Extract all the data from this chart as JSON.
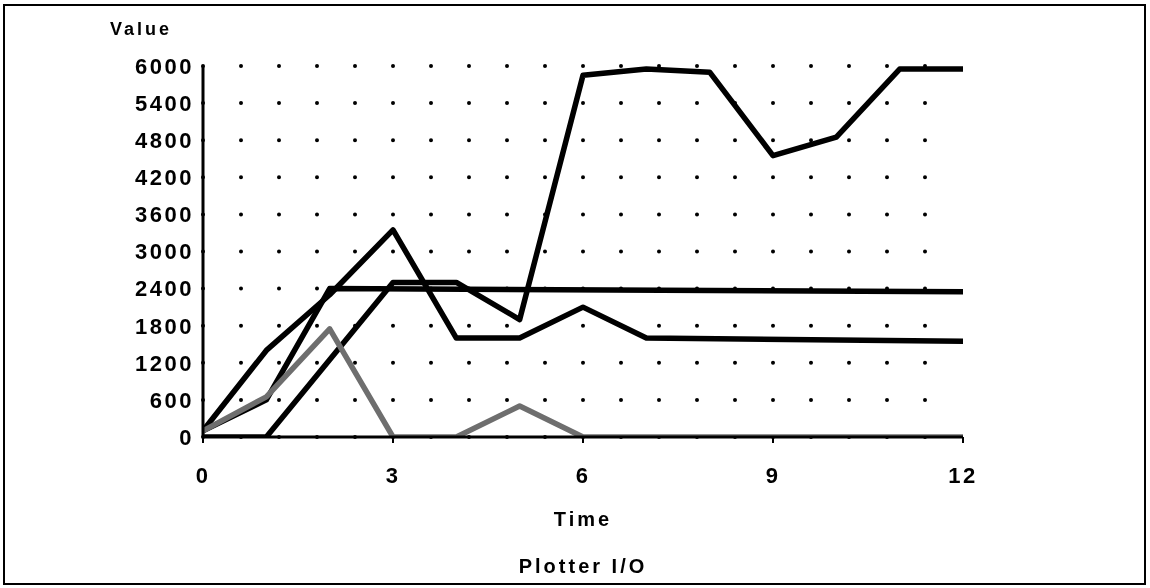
{
  "chart_data": {
    "type": "line",
    "title": "Plotter I/O",
    "xlabel": "Time",
    "ylabel": "Value",
    "x": [
      0,
      1,
      2,
      3,
      4,
      5,
      6,
      7,
      8,
      9,
      10,
      11,
      12
    ],
    "series": [
      {
        "color": "#000000",
        "values": [
          0,
          0,
          1250,
          2500,
          2500,
          1900,
          5850,
          5950,
          5900,
          4550,
          4850,
          5950,
          5950
        ]
      },
      {
        "color": "#000000",
        "x": [
          0,
          1,
          2,
          3,
          4,
          5,
          6,
          7,
          12
        ],
        "values": [
          100,
          1400,
          2300,
          3350,
          1600,
          1600,
          2100,
          1600,
          1550
        ]
      },
      {
        "color": "#000000",
        "x": [
          0,
          1,
          2,
          12
        ],
        "values": [
          100,
          600,
          2400,
          2350
        ]
      },
      {
        "color": "#6e6e6e",
        "x": [
          0,
          1,
          2,
          3,
          4,
          5,
          6,
          12
        ],
        "values": [
          100,
          650,
          1750,
          0,
          0,
          500,
          0,
          0
        ]
      }
    ],
    "xlim": [
      0,
      12
    ],
    "xticks": [
      0,
      3,
      6,
      9,
      12
    ],
    "ylim": [
      0,
      6000
    ],
    "yticks": [
      0,
      600,
      1200,
      1800,
      2400,
      3000,
      3600,
      4200,
      4800,
      5400,
      6000
    ],
    "grid": "y",
    "marker": "none",
    "line_style": "solid"
  }
}
